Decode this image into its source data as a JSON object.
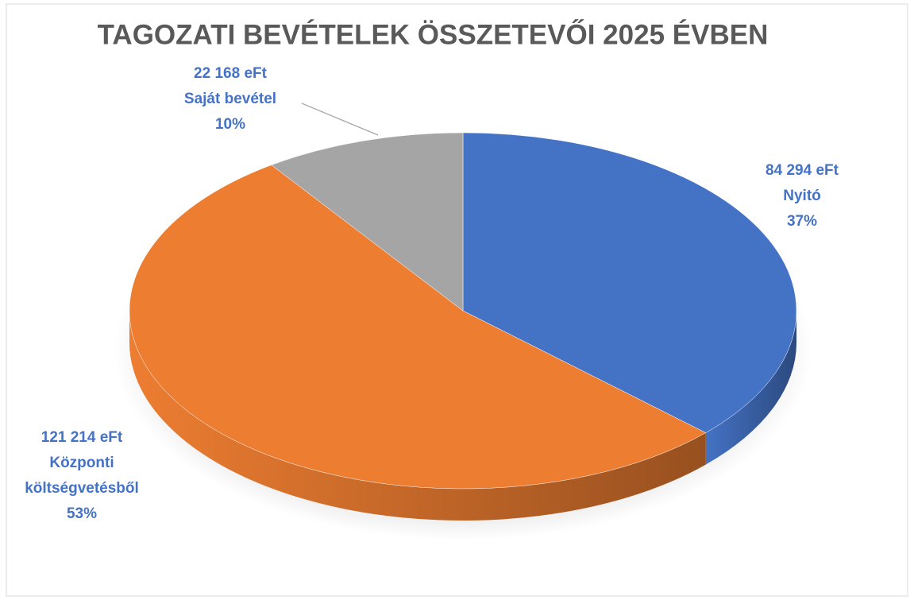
{
  "chart_data": {
    "type": "pie3d",
    "title": "TAGOZATI BEVÉTELEK ÖSSZETEVŐI 2025 ÉVBEN",
    "categories": [
      "Nyitó",
      "Központi költségvetésből",
      "Saját bevétel"
    ],
    "values": [
      84294,
      121214,
      22168
    ],
    "value_labels": [
      "84 294 eFt",
      "121 214 eFt",
      "22 168 eFt"
    ],
    "percent_labels": [
      "37%",
      "53%",
      "10%"
    ],
    "colors": [
      "#4472c4",
      "#ed7d31",
      "#a5a5a5"
    ],
    "label_color": "#4472c4"
  }
}
